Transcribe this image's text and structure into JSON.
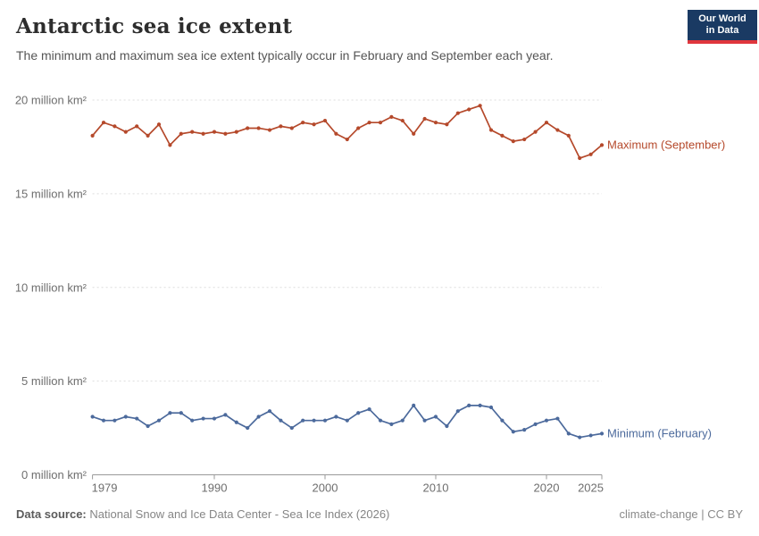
{
  "header": {
    "title": "Antarctic sea ice extent",
    "subtitle": "The minimum and maximum sea ice extent typically occur in February and September each year.",
    "logo": {
      "line1": "Our World",
      "line2": "in Data"
    }
  },
  "footer": {
    "source_label": "Data source:",
    "source_text": " National Snow and Ice Data Center - Sea Ice Index (2026)",
    "license": "climate-change | CC BY"
  },
  "colors": {
    "max_series": "#B5492B",
    "min_series": "#4C6A9C",
    "logo_bg": "#1A3A63",
    "logo_underline": "#E0363D",
    "grid": "#DDDDDD",
    "axis": "#999999",
    "tick_text": "#6E6E6E"
  },
  "chart_data": {
    "type": "line",
    "title": "Antarctic sea ice extent",
    "xlabel": "",
    "ylabel": "million km²",
    "grid": "horizontal-dashed",
    "legend_position": "end-of-line-labels",
    "xlim": [
      1979,
      2025
    ],
    "ylim": [
      0,
      20.3
    ],
    "x_ticks": [
      1979,
      1990,
      2000,
      2010,
      2020,
      2025
    ],
    "y_ticks": [
      0,
      5,
      10,
      15,
      20
    ],
    "y_tick_suffix": " million km²",
    "x": [
      1979,
      1980,
      1981,
      1982,
      1983,
      1984,
      1985,
      1986,
      1987,
      1988,
      1989,
      1990,
      1991,
      1992,
      1993,
      1994,
      1995,
      1996,
      1997,
      1998,
      1999,
      2000,
      2001,
      2002,
      2003,
      2004,
      2005,
      2006,
      2007,
      2008,
      2009,
      2010,
      2011,
      2012,
      2013,
      2014,
      2015,
      2016,
      2017,
      2018,
      2019,
      2020,
      2021,
      2022,
      2023,
      2024,
      2025
    ],
    "series": [
      {
        "name": "Maximum (September)",
        "color": "#B5492B",
        "values": [
          18.1,
          18.8,
          18.6,
          18.3,
          18.6,
          18.1,
          18.7,
          17.6,
          18.2,
          18.3,
          18.2,
          18.3,
          18.2,
          18.3,
          18.5,
          18.5,
          18.4,
          18.6,
          18.5,
          18.8,
          18.7,
          18.9,
          18.2,
          17.9,
          18.5,
          18.8,
          18.8,
          19.1,
          18.9,
          18.2,
          19.0,
          18.8,
          18.7,
          19.3,
          19.5,
          19.7,
          18.4,
          18.1,
          17.8,
          17.9,
          18.3,
          18.8,
          18.4,
          18.1,
          16.9,
          17.1,
          17.6
        ]
      },
      {
        "name": "Minimum (February)",
        "color": "#4C6A9C",
        "values": [
          3.1,
          2.9,
          2.9,
          3.1,
          3.0,
          2.6,
          2.9,
          3.3,
          3.3,
          2.9,
          3.0,
          3.0,
          3.2,
          2.8,
          2.5,
          3.1,
          3.4,
          2.9,
          2.5,
          2.9,
          2.9,
          2.9,
          3.1,
          2.9,
          3.3,
          3.5,
          2.9,
          2.7,
          2.9,
          3.7,
          2.9,
          3.1,
          2.6,
          3.4,
          3.7,
          3.7,
          3.6,
          2.9,
          2.3,
          2.4,
          2.7,
          2.9,
          3.0,
          2.2,
          2.0,
          2.1,
          2.2
        ]
      }
    ]
  }
}
